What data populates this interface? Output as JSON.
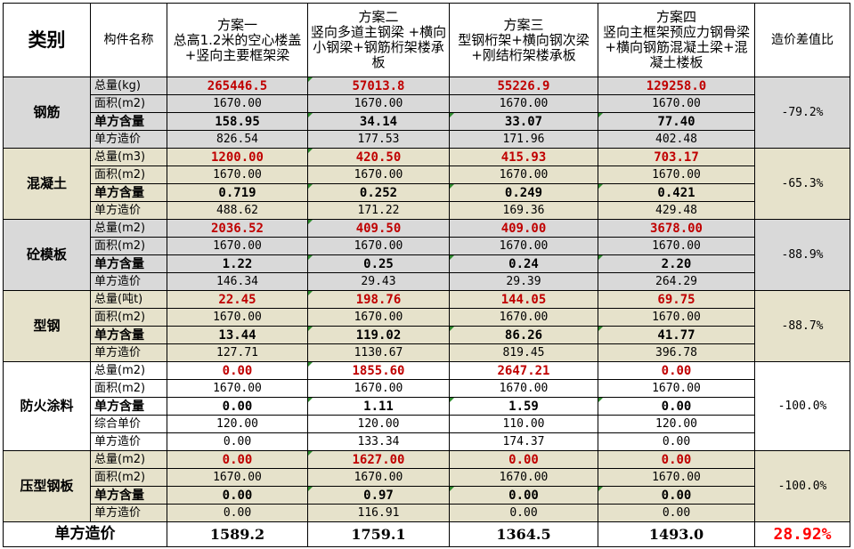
{
  "header": {
    "category": "类别",
    "component": "构件名称",
    "plans": [
      "方案一\n总高1.2米的空心楼盖+竖向主要框架梁",
      "方案二\n竖向多道主钢梁 +横向小钢梁+钢筋桁架楼承板",
      "方案三\n型钢桁架+横向钢次梁+刚结桁架楼承板",
      "方案四\n竖向主框架预应力钢骨梁+横向钢筋混凝土梁+混凝土楼板"
    ],
    "ratio": "造价差值比"
  },
  "groups": [
    {
      "name": "钢筋",
      "shade": "gray",
      "ratio": "-79.2%",
      "rows": [
        {
          "label": "总量(kg)",
          "style": "red",
          "values": [
            "265446.5",
            "57013.8",
            "55226.9",
            "129258.0"
          ]
        },
        {
          "label": "面积(m2)",
          "style": "normal",
          "values": [
            "1670.00",
            "1670.00",
            "1670.00",
            "1670.00"
          ]
        },
        {
          "label": "单方含量",
          "style": "bold",
          "values": [
            "158.95",
            "34.14",
            "33.07",
            "77.40"
          ]
        },
        {
          "label": "单方造价",
          "style": "normal",
          "values": [
            "826.54",
            "177.53",
            "171.96",
            "402.48"
          ]
        }
      ]
    },
    {
      "name": "混凝土",
      "shade": "tan",
      "ratio": "-65.3%",
      "rows": [
        {
          "label": "总量(m3)",
          "style": "red",
          "values": [
            "1200.00",
            "420.50",
            "415.93",
            "703.17"
          ]
        },
        {
          "label": "面积(m2)",
          "style": "normal",
          "values": [
            "1670.00",
            "1670.00",
            "1670.00",
            "1670.00"
          ]
        },
        {
          "label": "单方含量",
          "style": "bold",
          "values": [
            "0.719",
            "0.252",
            "0.249",
            "0.421"
          ]
        },
        {
          "label": "单方造价",
          "style": "normal",
          "values": [
            "488.62",
            "171.22",
            "169.36",
            "429.48"
          ]
        }
      ]
    },
    {
      "name": "砼模板",
      "shade": "gray",
      "ratio": "-88.9%",
      "rows": [
        {
          "label": "总量(m2)",
          "style": "red",
          "values": [
            "2036.52",
            "409.50",
            "409.00",
            "3678.00"
          ]
        },
        {
          "label": "面积(m2)",
          "style": "normal",
          "values": [
            "1670.00",
            "1670.00",
            "1670.00",
            "1670.00"
          ]
        },
        {
          "label": "单方含量",
          "style": "bold",
          "values": [
            "1.22",
            "0.25",
            "0.24",
            "2.20"
          ]
        },
        {
          "label": "单方造价",
          "style": "normal",
          "values": [
            "146.34",
            "29.43",
            "29.39",
            "264.29"
          ]
        }
      ]
    },
    {
      "name": "型钢",
      "shade": "tan",
      "ratio": "-88.7%",
      "rows": [
        {
          "label": "总量(吨t)",
          "style": "red",
          "values": [
            "22.45",
            "198.76",
            "144.05",
            "69.75"
          ]
        },
        {
          "label": "面积(m2)",
          "style": "normal",
          "values": [
            "1670.00",
            "1670.00",
            "1670.00",
            "1670.00"
          ]
        },
        {
          "label": "单方含量",
          "style": "bold",
          "values": [
            "13.44",
            "119.02",
            "86.26",
            "41.77"
          ]
        },
        {
          "label": "单方造价",
          "style": "normal",
          "values": [
            "127.71",
            "1130.67",
            "819.45",
            "396.78"
          ]
        }
      ]
    },
    {
      "name": "防火涂料",
      "shade": "white",
      "ratio": "-100.0%",
      "rows": [
        {
          "label": "总量(m2)",
          "style": "red",
          "values": [
            "0.00",
            "1855.60",
            "2647.21",
            "0.00"
          ]
        },
        {
          "label": "面积(m2)",
          "style": "normal",
          "values": [
            "1670.00",
            "1670.00",
            "1670.00",
            "1670.00"
          ]
        },
        {
          "label": "单方含量",
          "style": "bold",
          "values": [
            "0.00",
            "1.11",
            "1.59",
            "0.00"
          ]
        },
        {
          "label": "综合单价",
          "style": "normal",
          "values": [
            "120.00",
            "120.00",
            "110.00",
            "120.00"
          ]
        },
        {
          "label": "单方造价",
          "style": "normal",
          "values": [
            "0.00",
            "133.34",
            "174.37",
            "0.00"
          ]
        }
      ]
    },
    {
      "name": "压型钢板",
      "shade": "tan",
      "ratio": "-100.0%",
      "rows": [
        {
          "label": "总量(m2)",
          "style": "red",
          "values": [
            "0.00",
            "1627.00",
            "0.00",
            "0.00"
          ]
        },
        {
          "label": "面积(m2)",
          "style": "normal",
          "values": [
            "1670.00",
            "1670.00",
            "1670.00",
            "1670.00"
          ]
        },
        {
          "label": "单方含量",
          "style": "bold",
          "values": [
            "0.00",
            "0.97",
            "0.00",
            "0.00"
          ]
        },
        {
          "label": "单方造价",
          "style": "normal",
          "values": [
            "0.00",
            "116.91",
            "0.00",
            "0.00"
          ]
        }
      ]
    }
  ],
  "footer": {
    "label": "单方造价",
    "values": [
      "1589.2",
      "1759.1",
      "1364.5",
      "1493.0"
    ],
    "ratio": "28.92%"
  },
  "colors": {
    "gray_band": "#d9d9d9",
    "tan_band": "#e6e2cb",
    "highlight_red": "#c00000",
    "footer_ratio_red": "#ff0000"
  }
}
